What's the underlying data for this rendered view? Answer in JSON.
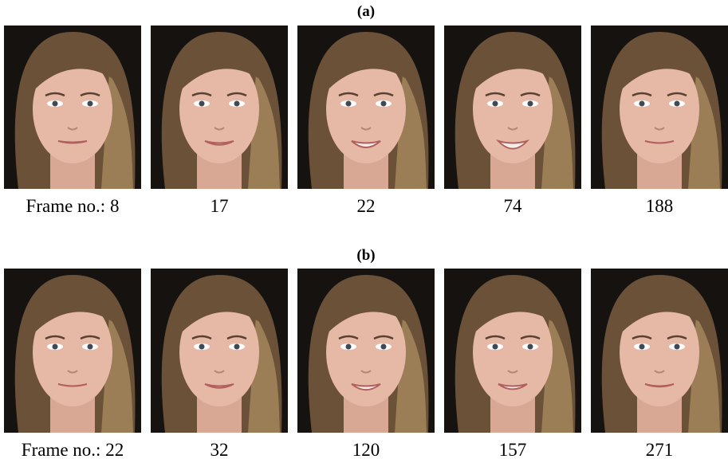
{
  "panels": [
    {
      "label": "(a)",
      "frames": [
        "Frame no.: 8",
        "17",
        "22",
        "74",
        "188"
      ]
    },
    {
      "label": "(b)",
      "frames": [
        "Frame no.: 22",
        "32",
        "120",
        "157",
        "271"
      ]
    }
  ]
}
